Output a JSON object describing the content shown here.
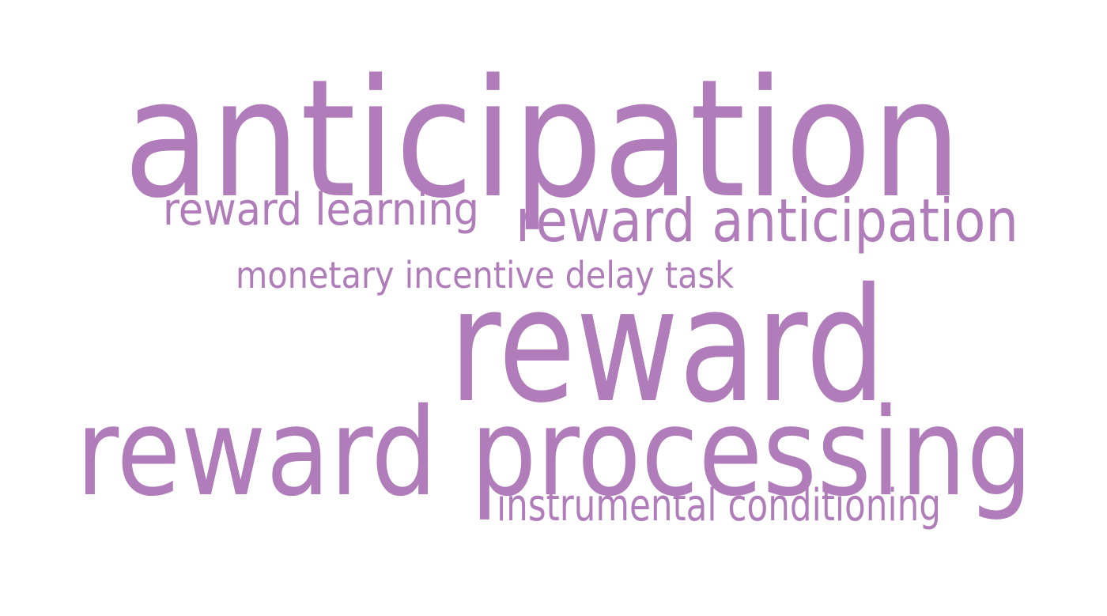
{
  "colors": {
    "background": "#ffffff",
    "word": "#b07dba"
  },
  "words": {
    "anticipation": "anticipation",
    "reward_learning": "reward learning",
    "reward_anticipation": "reward anticipation",
    "monetary_incentive_delay_task": "monetary incentive delay task",
    "reward": "reward",
    "reward_processing": "reward processing",
    "instrumental_conditioning": "instrumental conditioning"
  }
}
